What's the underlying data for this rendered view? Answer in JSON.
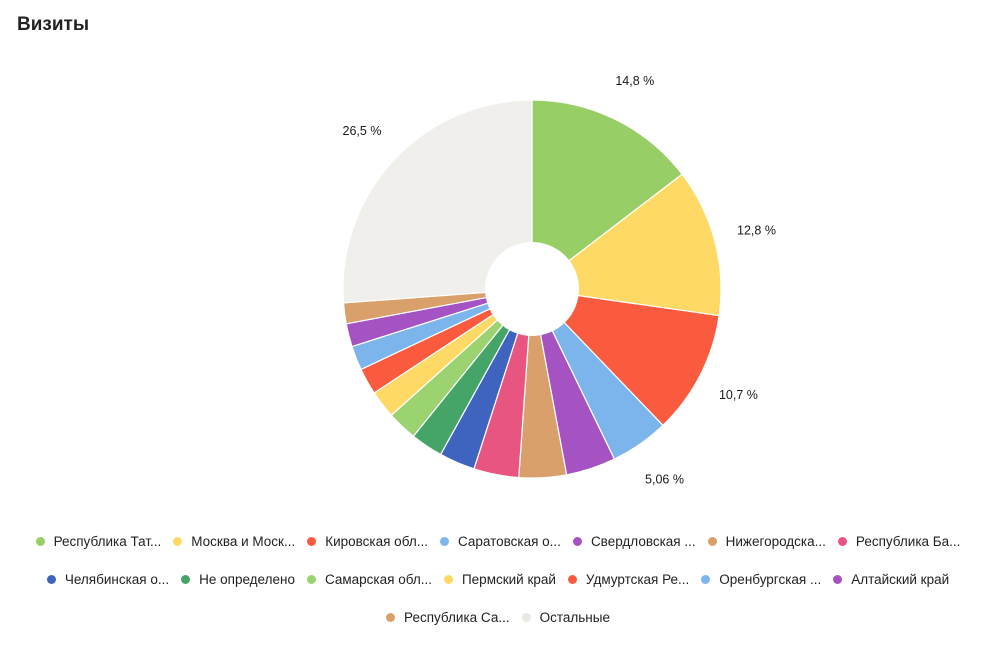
{
  "title": "Визиты",
  "chart_data": {
    "type": "pie",
    "donut": true,
    "slices": [
      {
        "label": "Республика Тат...",
        "value": 14.8,
        "pct_label": "14,8 %",
        "color": "#97cf66"
      },
      {
        "label": "Москва и Моск...",
        "value": 12.8,
        "pct_label": "12,8 %",
        "color": "#ffd966"
      },
      {
        "label": "Кировская обл...",
        "value": 10.7,
        "pct_label": "10,7 %",
        "color": "#fa5a3d"
      },
      {
        "label": "Саратовская о...",
        "value": 5.06,
        "pct_label": "5,06 %",
        "color": "#7cb5ec"
      },
      {
        "label": "Свердловская ...",
        "value": 4.3,
        "pct_label": "",
        "color": "#a552c2"
      },
      {
        "label": "Нижегородска...",
        "value": 4.1,
        "pct_label": "",
        "color": "#d9a06c"
      },
      {
        "label": "Республика Ба...",
        "value": 3.9,
        "pct_label": "",
        "color": "#e85581"
      },
      {
        "label": "Челябинская о...",
        "value": 3.1,
        "pct_label": "",
        "color": "#3f64c0"
      },
      {
        "label": "Не определено",
        "value": 2.8,
        "pct_label": "",
        "color": "#45a569"
      },
      {
        "label": "Самарская обл...",
        "value": 2.6,
        "pct_label": "",
        "color": "#9ad36f"
      },
      {
        "label": "Пермский край",
        "value": 2.4,
        "pct_label": "",
        "color": "#ffd966"
      },
      {
        "label": "Удмуртская Ре...",
        "value": 2.3,
        "pct_label": "",
        "color": "#fa5a3d"
      },
      {
        "label": "Оренбургская ...",
        "value": 2.1,
        "pct_label": "",
        "color": "#7cb5ec"
      },
      {
        "label": "Алтайский край",
        "value": 2.0,
        "pct_label": "",
        "color": "#a552c2"
      },
      {
        "label": "Республика Са...",
        "value": 1.8,
        "pct_label": "",
        "color": "#d9a06c"
      },
      {
        "label": "Остальные",
        "value": 26.5,
        "pct_label": "26,5 %",
        "color": "#f1efec"
      }
    ],
    "legend_position": "bottom"
  }
}
